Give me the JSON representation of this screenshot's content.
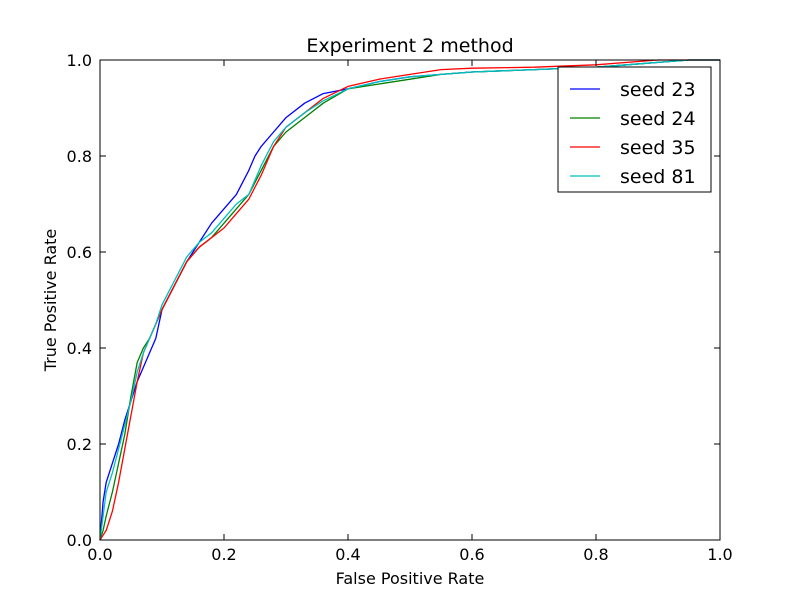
{
  "chart_data": {
    "type": "line",
    "title": "Experiment 2 method",
    "xlabel": "False Positive Rate",
    "ylabel": "True Positive Rate",
    "xlim": [
      0.0,
      1.0
    ],
    "ylim": [
      0.0,
      1.0
    ],
    "xticks": [
      "0.0",
      "0.2",
      "0.4",
      "0.6",
      "0.8",
      "1.0"
    ],
    "yticks": [
      "0.0",
      "0.2",
      "0.4",
      "0.6",
      "0.8",
      "1.0"
    ],
    "grid": false,
    "legend_position": "top-right",
    "series": [
      {
        "name": "seed 23",
        "color": "#0000ff",
        "x": [
          0.0,
          0.005,
          0.01,
          0.02,
          0.03,
          0.04,
          0.05,
          0.06,
          0.07,
          0.08,
          0.09,
          0.1,
          0.12,
          0.14,
          0.16,
          0.18,
          0.2,
          0.22,
          0.24,
          0.25,
          0.26,
          0.28,
          0.3,
          0.33,
          0.36,
          0.4,
          0.45,
          0.5,
          0.55,
          0.6,
          0.7,
          0.8,
          0.85,
          0.9,
          0.95,
          1.0
        ],
        "y": [
          0.0,
          0.08,
          0.12,
          0.16,
          0.2,
          0.25,
          0.29,
          0.33,
          0.36,
          0.39,
          0.42,
          0.48,
          0.53,
          0.58,
          0.62,
          0.66,
          0.69,
          0.72,
          0.77,
          0.8,
          0.82,
          0.85,
          0.88,
          0.91,
          0.93,
          0.94,
          0.955,
          0.965,
          0.97,
          0.975,
          0.98,
          0.985,
          0.99,
          0.995,
          1.0,
          1.0
        ]
      },
      {
        "name": "seed 24",
        "color": "#008000",
        "x": [
          0.0,
          0.005,
          0.01,
          0.02,
          0.03,
          0.04,
          0.05,
          0.06,
          0.07,
          0.08,
          0.09,
          0.1,
          0.12,
          0.14,
          0.16,
          0.18,
          0.2,
          0.22,
          0.24,
          0.26,
          0.28,
          0.3,
          0.33,
          0.36,
          0.4,
          0.45,
          0.5,
          0.55,
          0.6,
          0.7,
          0.8,
          0.85,
          0.9,
          0.95,
          1.0
        ],
        "y": [
          0.0,
          0.02,
          0.05,
          0.1,
          0.16,
          0.22,
          0.3,
          0.37,
          0.4,
          0.42,
          0.45,
          0.48,
          0.53,
          0.58,
          0.61,
          0.63,
          0.66,
          0.69,
          0.72,
          0.77,
          0.82,
          0.85,
          0.88,
          0.91,
          0.94,
          0.95,
          0.96,
          0.97,
          0.975,
          0.98,
          0.985,
          0.99,
          0.995,
          1.0,
          1.0
        ]
      },
      {
        "name": "seed 35",
        "color": "#ff0000",
        "x": [
          0.0,
          0.005,
          0.01,
          0.02,
          0.03,
          0.04,
          0.05,
          0.06,
          0.07,
          0.08,
          0.09,
          0.1,
          0.12,
          0.14,
          0.16,
          0.18,
          0.2,
          0.22,
          0.24,
          0.26,
          0.28,
          0.3,
          0.33,
          0.36,
          0.4,
          0.45,
          0.5,
          0.55,
          0.6,
          0.7,
          0.8,
          0.85,
          0.9,
          0.95,
          1.0
        ],
        "y": [
          0.0,
          0.01,
          0.02,
          0.06,
          0.12,
          0.19,
          0.26,
          0.33,
          0.39,
          0.42,
          0.45,
          0.48,
          0.53,
          0.58,
          0.61,
          0.63,
          0.65,
          0.68,
          0.71,
          0.76,
          0.82,
          0.86,
          0.89,
          0.92,
          0.945,
          0.96,
          0.97,
          0.98,
          0.983,
          0.985,
          0.99,
          0.995,
          1.0,
          1.0,
          1.0
        ]
      },
      {
        "name": "seed 81",
        "color": "#00bfbf",
        "x": [
          0.0,
          0.005,
          0.01,
          0.02,
          0.03,
          0.04,
          0.05,
          0.06,
          0.07,
          0.08,
          0.09,
          0.1,
          0.12,
          0.14,
          0.16,
          0.18,
          0.2,
          0.22,
          0.24,
          0.26,
          0.28,
          0.3,
          0.33,
          0.36,
          0.4,
          0.45,
          0.5,
          0.55,
          0.6,
          0.7,
          0.8,
          0.85,
          0.9,
          0.95,
          1.0
        ],
        "y": [
          0.0,
          0.05,
          0.1,
          0.14,
          0.19,
          0.24,
          0.29,
          0.35,
          0.39,
          0.42,
          0.45,
          0.49,
          0.54,
          0.59,
          0.62,
          0.64,
          0.67,
          0.7,
          0.72,
          0.78,
          0.83,
          0.86,
          0.89,
          0.915,
          0.94,
          0.955,
          0.965,
          0.97,
          0.975,
          0.98,
          0.985,
          0.99,
          0.995,
          1.0,
          1.0
        ]
      }
    ]
  }
}
